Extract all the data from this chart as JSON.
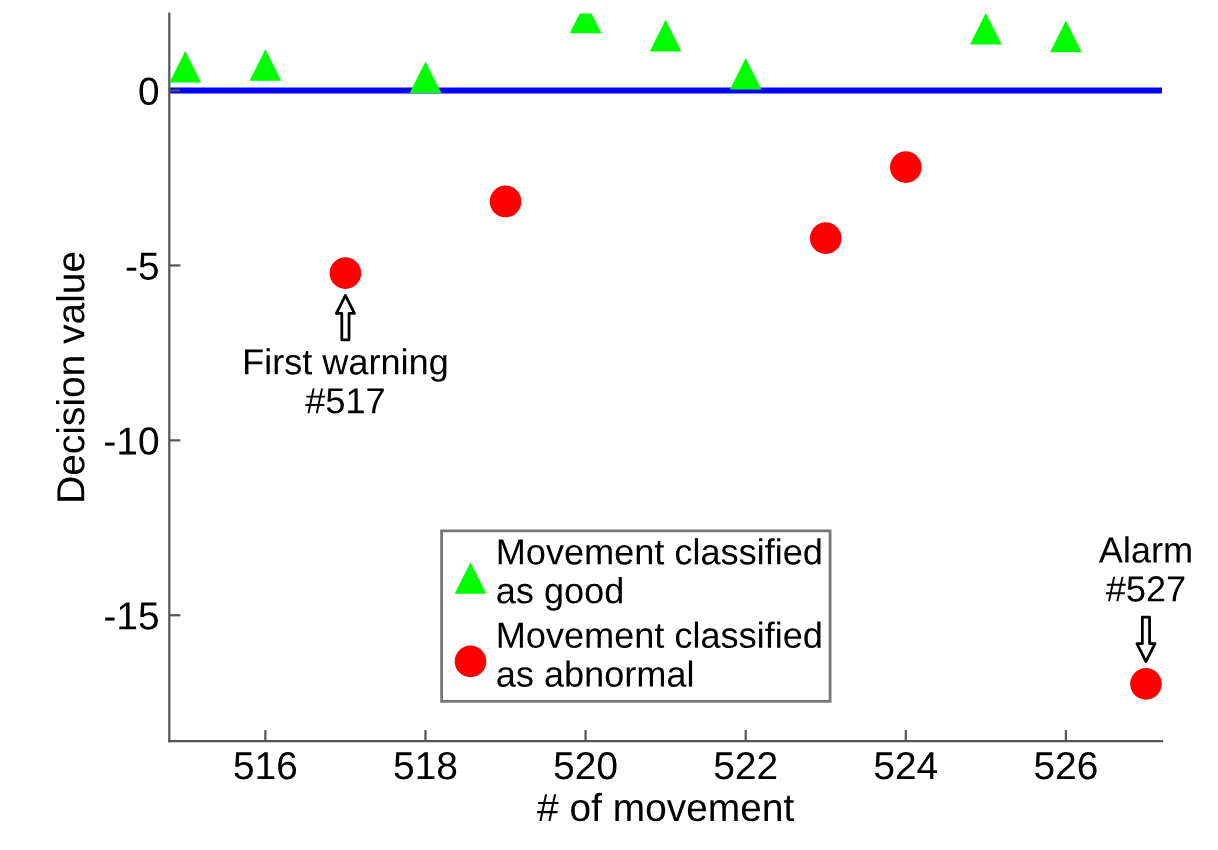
{
  "chart_data": {
    "type": "scatter",
    "xlabel": "# of movement",
    "ylabel": "Decision value",
    "xlim": [
      514.8,
      527.2
    ],
    "xticks": [
      516,
      518,
      520,
      522,
      524,
      526
    ],
    "ylim": [
      -18.6,
      2.2
    ],
    "yticks": [
      -15,
      -10,
      -5,
      0
    ],
    "series": [
      {
        "name": "Movement classified\nas good",
        "color": "#00ff00",
        "marker": "triangle",
        "x": [
          515,
          516,
          518,
          520,
          521,
          522,
          525,
          526
        ],
        "values": [
          0.68,
          0.73,
          0.38,
          2.09,
          1.57,
          0.48,
          1.77,
          1.55
        ]
      },
      {
        "name": "Movement classified\nas abnormal",
        "color": "#ff0000",
        "marker": "circle",
        "x": [
          517,
          519,
          523,
          524,
          527
        ],
        "values": [
          -5.22,
          -3.17,
          -4.22,
          -2.19,
          -16.96
        ]
      }
    ],
    "ref_lines": [
      {
        "axis": "y",
        "value": 0,
        "color": "#0000ff",
        "line_style": "solid"
      }
    ],
    "annotations": [
      {
        "text": "First warning\n#517",
        "x": 517,
        "y": -5.22
      },
      {
        "text": "Alarm\n#527",
        "x": 527,
        "y": -16.96
      }
    ],
    "legend": "bottom",
    "grid": false
  }
}
